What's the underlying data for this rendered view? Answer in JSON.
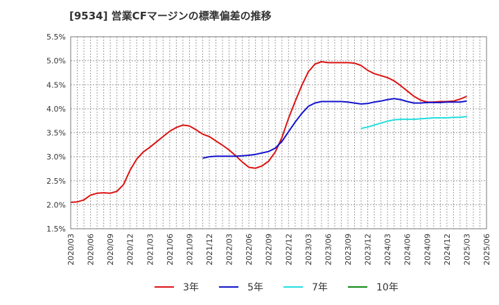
{
  "chart_data": {
    "type": "line",
    "title": "[9534]  営業CFマージンの標準偏差の推移",
    "xlabel": "",
    "ylabel": "",
    "ylim": [
      1.5,
      5.5
    ],
    "y_ticks": [
      "1.5%",
      "2.0%",
      "2.5%",
      "3.0%",
      "3.5%",
      "4.0%",
      "4.5%",
      "5.0%",
      "5.5%"
    ],
    "x_ticks": [
      "2020/03",
      "2020/06",
      "2020/09",
      "2020/12",
      "2021/03",
      "2021/06",
      "2021/09",
      "2021/12",
      "2022/03",
      "2022/06",
      "2022/09",
      "2022/12",
      "2023/03",
      "2023/06",
      "2023/09",
      "2023/12",
      "2024/03",
      "2024/06",
      "2024/09",
      "2024/12",
      "2025/03",
      "2025/06"
    ],
    "grid": true,
    "legend_position": "bottom",
    "series": [
      {
        "name": "3年",
        "color": "#dd1111",
        "points": [
          [
            "2020/03",
            2.05
          ],
          [
            "2020/04",
            2.06
          ],
          [
            "2020/05",
            2.1
          ],
          [
            "2020/06",
            2.2
          ],
          [
            "2020/07",
            2.24
          ],
          [
            "2020/08",
            2.25
          ],
          [
            "2020/09",
            2.24
          ],
          [
            "2020/10",
            2.28
          ],
          [
            "2020/11",
            2.42
          ],
          [
            "2020/12",
            2.72
          ],
          [
            "2021/01",
            2.95
          ],
          [
            "2021/02",
            3.1
          ],
          [
            "2021/03",
            3.2
          ],
          [
            "2021/04",
            3.31
          ],
          [
            "2021/05",
            3.42
          ],
          [
            "2021/06",
            3.53
          ],
          [
            "2021/07",
            3.61
          ],
          [
            "2021/08",
            3.66
          ],
          [
            "2021/09",
            3.64
          ],
          [
            "2021/10",
            3.56
          ],
          [
            "2021/11",
            3.47
          ],
          [
            "2021/12",
            3.42
          ],
          [
            "2022/01",
            3.33
          ],
          [
            "2022/02",
            3.24
          ],
          [
            "2022/03",
            3.14
          ],
          [
            "2022/04",
            3.02
          ],
          [
            "2022/05",
            2.89
          ],
          [
            "2022/06",
            2.78
          ],
          [
            "2022/07",
            2.76
          ],
          [
            "2022/08",
            2.81
          ],
          [
            "2022/09",
            2.91
          ],
          [
            "2022/10",
            3.1
          ],
          [
            "2022/11",
            3.4
          ],
          [
            "2022/12",
            3.8
          ],
          [
            "2023/01",
            4.15
          ],
          [
            "2023/02",
            4.48
          ],
          [
            "2023/03",
            4.77
          ],
          [
            "2023/04",
            4.93
          ],
          [
            "2023/05",
            4.98
          ],
          [
            "2023/06",
            4.96
          ],
          [
            "2023/07",
            4.96
          ],
          [
            "2023/08",
            4.96
          ],
          [
            "2023/09",
            4.96
          ],
          [
            "2023/10",
            4.95
          ],
          [
            "2023/11",
            4.9
          ],
          [
            "2023/12",
            4.8
          ],
          [
            "2024/01",
            4.73
          ],
          [
            "2024/02",
            4.69
          ],
          [
            "2024/03",
            4.65
          ],
          [
            "2024/04",
            4.58
          ],
          [
            "2024/05",
            4.48
          ],
          [
            "2024/06",
            4.37
          ],
          [
            "2024/07",
            4.26
          ],
          [
            "2024/08",
            4.18
          ],
          [
            "2024/09",
            4.14
          ],
          [
            "2024/10",
            4.14
          ],
          [
            "2024/11",
            4.15
          ],
          [
            "2024/12",
            4.15
          ],
          [
            "2025/01",
            4.16
          ],
          [
            "2025/02",
            4.2
          ],
          [
            "2025/03",
            4.26
          ]
        ]
      },
      {
        "name": "5年",
        "color": "#1111cc",
        "points": [
          [
            "2021/11",
            2.97
          ],
          [
            "2021/12",
            3.0
          ],
          [
            "2022/01",
            3.01
          ],
          [
            "2022/02",
            3.01
          ],
          [
            "2022/03",
            3.01
          ],
          [
            "2022/04",
            3.01
          ],
          [
            "2022/05",
            3.02
          ],
          [
            "2022/06",
            3.03
          ],
          [
            "2022/07",
            3.05
          ],
          [
            "2022/08",
            3.08
          ],
          [
            "2022/09",
            3.11
          ],
          [
            "2022/10",
            3.18
          ],
          [
            "2022/11",
            3.32
          ],
          [
            "2022/12",
            3.52
          ],
          [
            "2023/01",
            3.72
          ],
          [
            "2023/02",
            3.9
          ],
          [
            "2023/03",
            4.05
          ],
          [
            "2023/04",
            4.12
          ],
          [
            "2023/05",
            4.15
          ],
          [
            "2023/06",
            4.15
          ],
          [
            "2023/07",
            4.15
          ],
          [
            "2023/08",
            4.15
          ],
          [
            "2023/09",
            4.14
          ],
          [
            "2023/10",
            4.12
          ],
          [
            "2023/11",
            4.1
          ],
          [
            "2023/12",
            4.11
          ],
          [
            "2024/01",
            4.14
          ],
          [
            "2024/02",
            4.16
          ],
          [
            "2024/03",
            4.19
          ],
          [
            "2024/04",
            4.21
          ],
          [
            "2024/05",
            4.19
          ],
          [
            "2024/06",
            4.15
          ],
          [
            "2024/07",
            4.12
          ],
          [
            "2024/08",
            4.12
          ],
          [
            "2024/09",
            4.13
          ],
          [
            "2024/10",
            4.13
          ],
          [
            "2024/11",
            4.13
          ],
          [
            "2024/12",
            4.14
          ],
          [
            "2025/01",
            4.14
          ],
          [
            "2025/02",
            4.14
          ],
          [
            "2025/03",
            4.16
          ]
        ]
      },
      {
        "name": "7年",
        "color": "#22dddd",
        "points": [
          [
            "2023/11",
            3.59
          ],
          [
            "2023/12",
            3.62
          ],
          [
            "2024/01",
            3.66
          ],
          [
            "2024/02",
            3.7
          ],
          [
            "2024/03",
            3.74
          ],
          [
            "2024/04",
            3.77
          ],
          [
            "2024/05",
            3.78
          ],
          [
            "2024/06",
            3.78
          ],
          [
            "2024/07",
            3.78
          ],
          [
            "2024/08",
            3.79
          ],
          [
            "2024/09",
            3.8
          ],
          [
            "2024/10",
            3.81
          ],
          [
            "2024/11",
            3.81
          ],
          [
            "2024/12",
            3.81
          ],
          [
            "2025/01",
            3.82
          ],
          [
            "2025/02",
            3.82
          ],
          [
            "2025/03",
            3.84
          ]
        ]
      },
      {
        "name": "10年",
        "color": "#118811",
        "points": []
      }
    ]
  }
}
